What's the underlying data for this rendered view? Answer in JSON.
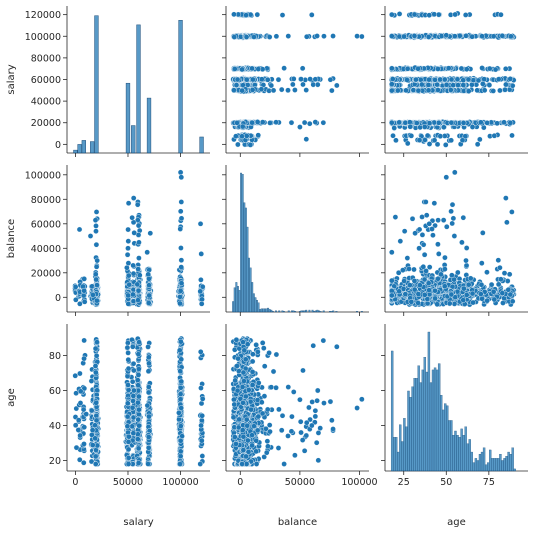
{
  "chart_data": {
    "type": "scatter",
    "variables": [
      "salary",
      "balance",
      "age"
    ],
    "axes": {
      "salary": {
        "ticks": [
          0,
          20000,
          40000,
          60000,
          80000,
          100000,
          120000
        ],
        "x_ticks": [
          0,
          50000,
          100000
        ],
        "range": [
          -8000,
          128000
        ]
      },
      "balance": {
        "ticks": [
          0,
          20000,
          40000,
          60000,
          80000,
          100000
        ],
        "x_ticks": [
          0,
          50000,
          100000
        ],
        "range": [
          -12000,
          108000
        ]
      },
      "age": {
        "ticks": [
          20,
          40,
          60,
          80
        ],
        "x_ticks": [
          25,
          50,
          75
        ],
        "range": [
          14,
          98
        ]
      }
    },
    "salary_levels": [
      0,
      4000,
      8000,
      16000,
      20000,
      50000,
      55000,
      60000,
      70000,
      100000,
      120000
    ],
    "salary_histogram": [
      {
        "x": 0,
        "height": 2500
      },
      {
        "x": 4000,
        "height": 7500
      },
      {
        "x": 8000,
        "height": 11000
      },
      {
        "x": 16000,
        "height": 10000
      },
      {
        "x": 20000,
        "height": 120000
      },
      {
        "x": 50000,
        "height": 61000
      },
      {
        "x": 55000,
        "height": 24000
      },
      {
        "x": 60000,
        "height": 112000
      },
      {
        "x": 70000,
        "height": 48000
      },
      {
        "x": 100000,
        "height": 116000
      },
      {
        "x": 120000,
        "height": 14000
      }
    ],
    "balance_distribution": {
      "peak": 0,
      "spread": 9000,
      "max_observed": 102000,
      "min_observed": -8000
    },
    "age_distribution": {
      "min": 18,
      "max": 95,
      "mode": 33
    },
    "color": "#1f77b4",
    "grid": false,
    "legend": "none"
  }
}
